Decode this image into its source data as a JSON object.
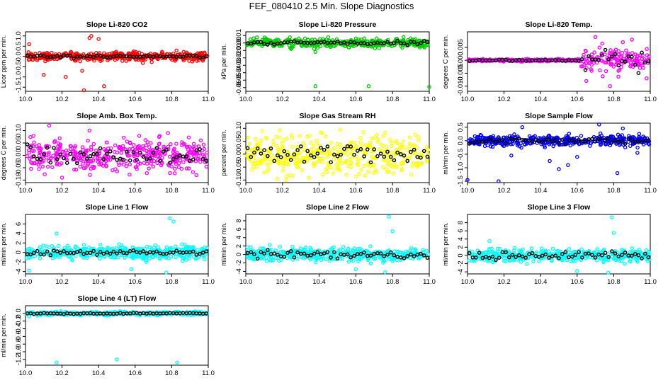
{
  "title": "FEF_080410  2.5 Min. Slope Diagnostics",
  "chart_data": [
    {
      "type": "scatter",
      "title": "Slope Li-820 CO2",
      "ylabel": "Licor ppm per min.",
      "color": "#ff0000",
      "xlim": [
        10.0,
        11.0
      ],
      "xticks": [
        10.0,
        10.2,
        10.4,
        10.6,
        10.8,
        11.0
      ],
      "xtick_labels": [
        "10.0",
        "10.2",
        "10.4",
        "10.6",
        "10.8",
        "11.0"
      ],
      "ylim": [
        -1.7,
        1.2
      ],
      "yticks": [
        -1.5,
        -1.0,
        -0.5,
        0.0,
        0.5,
        1.0
      ],
      "ytick_labels": [
        "-1.5",
        "-1.0",
        "-0.5",
        "0.0",
        "0.5",
        "1.0"
      ],
      "spread": 0.15,
      "outliers": [
        [
          10.32,
          -1.65
        ],
        [
          10.36,
          1.0
        ],
        [
          10.35,
          0.9
        ],
        [
          10.43,
          -1.45
        ],
        [
          10.22,
          -1.0
        ],
        [
          10.1,
          -0.9
        ],
        [
          10.31,
          -0.7
        ],
        [
          10.02,
          0.6
        ],
        [
          10.4,
          0.85
        ]
      ]
    },
    {
      "type": "scatter",
      "title": "Slope Li-820 Pressure",
      "ylabel": "kPa per min.",
      "color": "#00cc00",
      "xlim": [
        10.0,
        11.0
      ],
      "xticks": [
        10.0,
        10.2,
        10.4,
        10.6,
        10.8,
        11.0
      ],
      "xtick_labels": [
        "10.0",
        "10.2",
        "10.4",
        "10.6",
        "10.8",
        "11.0"
      ],
      "ylim": [
        -0.065,
        0.015
      ],
      "yticks": [
        -0.06,
        -0.05,
        -0.04,
        -0.03,
        -0.02,
        -0.01,
        0.0,
        0.01
      ],
      "ytick_labels": [
        "-0.06",
        "-0.05",
        "-0.04",
        "-0.03",
        "-0.02",
        "-0.01",
        "0.00",
        "0.01"
      ],
      "spread": 0.004,
      "outliers": [
        [
          10.38,
          -0.058
        ],
        [
          10.67,
          -0.058
        ],
        [
          11.0,
          -0.059
        ],
        [
          10.38,
          -0.012
        ],
        [
          10.6,
          0.006
        ],
        [
          10.86,
          0.008
        ]
      ]
    },
    {
      "type": "scatter",
      "title": "Slope Li-820 Temp.",
      "ylabel": "degrees C per min.",
      "color": "#ff00ff",
      "xlim": [
        10.0,
        11.0
      ],
      "xticks": [
        10.0,
        10.2,
        10.4,
        10.6,
        10.8,
        11.0
      ],
      "xtick_labels": [
        "10.0",
        "10.2",
        "10.4",
        "10.6",
        "10.8",
        "11.0"
      ],
      "ylim": [
        -0.012,
        0.011
      ],
      "yticks": [
        -0.01,
        -0.005,
        0.0,
        0.005
      ],
      "ytick_labels": [
        "-0.010",
        "-0.005",
        "0.000",
        "0.005"
      ],
      "spread": 0.0006,
      "outliers": [
        [
          10.7,
          0.009
        ],
        [
          10.85,
          0.007
        ],
        [
          10.65,
          -0.008
        ],
        [
          10.78,
          -0.01
        ],
        [
          10.98,
          -0.007
        ],
        [
          10.9,
          0.008
        ]
      ]
    },
    {
      "type": "scatter",
      "title": "Slope Amb. Box Temp.",
      "ylabel": "degrees C per min.",
      "color": "#ff00ff",
      "xlim": [
        10.0,
        11.0
      ],
      "xticks": [
        10.0,
        10.2,
        10.4,
        10.6,
        10.8,
        11.0
      ],
      "xtick_labels": [
        "10.0",
        "10.2",
        "10.4",
        "10.6",
        "10.8",
        "11.0"
      ],
      "ylim": [
        -0.11,
        0.13
      ],
      "yticks": [
        -0.1,
        -0.05,
        0.0,
        0.05,
        0.1
      ],
      "ytick_labels": [
        "-0.10",
        "-0.05",
        "0.00",
        "0.05",
        "0.10"
      ],
      "spread": 0.045,
      "outliers": [
        [
          10.13,
          0.12
        ],
        [
          10.2,
          -0.09
        ],
        [
          10.35,
          0.1
        ],
        [
          10.78,
          0.09
        ]
      ]
    },
    {
      "type": "scatter",
      "title": "Slope Gas Stream RH",
      "ylabel": "percent per min.",
      "color": "#ffff00",
      "xlim": [
        10.0,
        11.0
      ],
      "xticks": [
        10.0,
        10.2,
        10.4,
        10.6,
        10.8,
        11.0
      ],
      "xtick_labels": [
        "10.0",
        "10.2",
        "10.4",
        "10.6",
        "10.8",
        "11.0"
      ],
      "ylim": [
        -0.11,
        0.12
      ],
      "yticks": [
        -0.1,
        -0.05,
        0.0,
        0.05,
        0.1
      ],
      "ytick_labels": [
        "-0.10",
        "-0.05",
        "0.00",
        "0.05",
        "0.10"
      ],
      "spread": 0.05,
      "outliers": [
        [
          10.09,
          0.09
        ],
        [
          10.22,
          -0.1
        ],
        [
          10.55,
          -0.08
        ]
      ]
    },
    {
      "type": "scatter",
      "title": "Slope Sample Flow",
      "ylabel": "ml/min per min.",
      "color": "#0000ff",
      "xlim": [
        10.0,
        11.0
      ],
      "xticks": [
        10.0,
        10.2,
        10.4,
        10.6,
        10.8,
        11.0
      ],
      "xtick_labels": [
        "10.0",
        "10.2",
        "10.4",
        "10.6",
        "10.8",
        "11.0"
      ],
      "ylim": [
        -1.55,
        0.65
      ],
      "yticks": [
        -1.5,
        -1.0,
        -0.5,
        0.0,
        0.5
      ],
      "ytick_labels": [
        "-1.5",
        "-1.0",
        "-0.5",
        "0.0",
        "0.5"
      ],
      "spread": 0.14,
      "outliers": [
        [
          10.0,
          -1.45
        ],
        [
          10.17,
          -1.5
        ],
        [
          10.5,
          -1.05
        ],
        [
          10.55,
          -0.9
        ],
        [
          10.82,
          -1.2
        ],
        [
          10.24,
          -0.55
        ],
        [
          10.45,
          -0.75
        ],
        [
          10.6,
          -0.6
        ],
        [
          10.93,
          -0.45
        ],
        [
          10.3,
          0.5
        ],
        [
          10.72,
          0.6
        ],
        [
          10.85,
          0.45
        ]
      ]
    },
    {
      "type": "scatter",
      "title": "Slope Line 1 Flow",
      "ylabel": "ml/min per min.",
      "color": "#00ffff",
      "xlim": [
        10.0,
        11.0
      ],
      "xticks": [
        10.0,
        10.2,
        10.4,
        10.6,
        10.8,
        11.0
      ],
      "xtick_labels": [
        "10.0",
        "10.2",
        "10.4",
        "10.6",
        "10.8",
        "11.0"
      ],
      "ylim": [
        -4.5,
        8.0
      ],
      "yticks": [
        -4,
        -2,
        0,
        2,
        4,
        6
      ],
      "ytick_labels": [
        "-4",
        "-2",
        "0",
        "2",
        "4",
        "6"
      ],
      "spread": 1.0,
      "outliers": [
        [
          10.79,
          7.2
        ],
        [
          10.81,
          6.5
        ],
        [
          10.77,
          -4.2
        ],
        [
          10.58,
          -3.5
        ],
        [
          10.17,
          4.0
        ],
        [
          10.02,
          -3.8
        ]
      ]
    },
    {
      "type": "scatter",
      "title": "Slope Line 2 Flow",
      "ylabel": "ml/min per min.",
      "color": "#00ffff",
      "xlim": [
        10.0,
        11.0
      ],
      "xticks": [
        10.0,
        10.2,
        10.4,
        10.6,
        10.8,
        11.0
      ],
      "xtick_labels": [
        "10.0",
        "10.2",
        "10.4",
        "10.6",
        "10.8",
        "11.0"
      ],
      "ylim": [
        -4.6,
        9.5
      ],
      "yticks": [
        -4,
        -2,
        0,
        2,
        4,
        6,
        8
      ],
      "ytick_labels": [
        "-4",
        "-2",
        "0",
        "2",
        "4",
        "6",
        "8"
      ],
      "spread": 1.1,
      "outliers": [
        [
          10.78,
          9.0
        ],
        [
          10.76,
          -4.2
        ],
        [
          10.8,
          5.5
        ],
        [
          10.6,
          -3.5
        ]
      ]
    },
    {
      "type": "scatter",
      "title": "Slope Line 3 Flow",
      "ylabel": "ml/min per min.",
      "color": "#00ffff",
      "xlim": [
        10.0,
        11.0
      ],
      "xticks": [
        10.0,
        10.2,
        10.4,
        10.6,
        10.8,
        11.0
      ],
      "xtick_labels": [
        "10.0",
        "10.2",
        "10.4",
        "10.6",
        "10.8",
        "11.0"
      ],
      "ylim": [
        -4.5,
        10.0
      ],
      "yticks": [
        -4,
        -2,
        0,
        2,
        4,
        6,
        8
      ],
      "ytick_labels": [
        "-4",
        "-2",
        "0",
        "2",
        "4",
        "6",
        "8"
      ],
      "spread": 1.1,
      "outliers": [
        [
          10.79,
          9.3
        ],
        [
          10.77,
          -4.2
        ],
        [
          10.8,
          5.5
        ],
        [
          10.6,
          -3.8
        ],
        [
          10.12,
          3.5
        ]
      ]
    },
    {
      "type": "scatter",
      "title": "Slope Line 4 (LT) Flow",
      "ylabel": "ml/min per min.",
      "color": "#00ffff",
      "xlim": [
        10.0,
        11.0
      ],
      "xticks": [
        10.0,
        10.2,
        10.4,
        10.6,
        10.8,
        11.0
      ],
      "xtick_labels": [
        "10.0",
        "10.2",
        "10.4",
        "10.6",
        "10.8",
        "11.0"
      ],
      "ylim": [
        -1.35,
        0.2
      ],
      "yticks": [
        -1.2,
        -1.0,
        -0.8,
        -0.6,
        -0.4,
        -0.2,
        0.0
      ],
      "ytick_labels": [
        "-1.2",
        "-1.0",
        "-0.8",
        "-0.6",
        "-0.4",
        "-0.2",
        "0.0"
      ],
      "spread": 0.03,
      "outliers": [
        [
          10.17,
          -1.28
        ],
        [
          10.5,
          -1.2
        ],
        [
          10.83,
          -1.28
        ],
        [
          10.02,
          -0.08
        ]
      ]
    }
  ]
}
